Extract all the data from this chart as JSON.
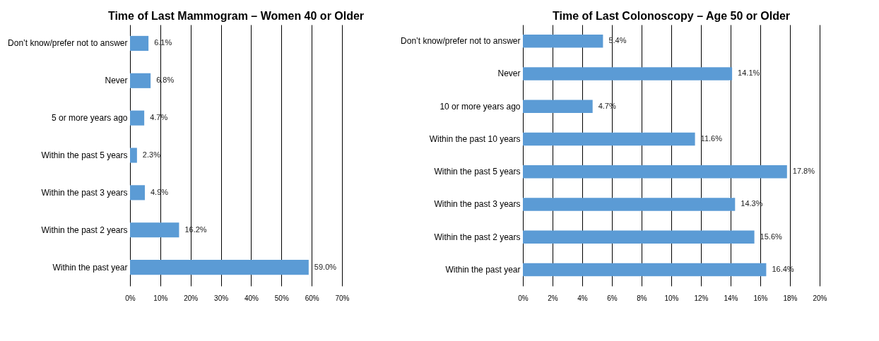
{
  "chart_data": [
    {
      "type": "bar",
      "orientation": "horizontal",
      "title": "Time of Last Mammogram – Women 40 or Older",
      "categories": [
        "Don’t know/prefer not to answer",
        "Never",
        "5 or more years ago",
        "Within the past 5 years",
        "Within the past 3 years",
        "Within the past 2 years",
        "Within the past year"
      ],
      "values": [
        6.1,
        6.8,
        4.7,
        2.3,
        4.9,
        16.2,
        59.0
      ],
      "value_labels": [
        "6.1%",
        "6.8%",
        "4.7%",
        "2.3%",
        "4.9%",
        "16.2%",
        "59.0%"
      ],
      "color": "#5b9bd5",
      "xlim": [
        0,
        70
      ],
      "xticks": [
        {
          "value": 0,
          "label": "0%"
        },
        {
          "value": 10,
          "label": "10%"
        },
        {
          "value": 20,
          "label": "20%"
        },
        {
          "value": 30,
          "label": "30%"
        },
        {
          "value": 40,
          "label": "40%"
        },
        {
          "value": 50,
          "label": "50%"
        },
        {
          "value": 60,
          "label": "60%"
        },
        {
          "value": 70,
          "label": "70%"
        }
      ],
      "grid": "x"
    },
    {
      "type": "bar",
      "orientation": "horizontal",
      "title": "Time of Last Colonoscopy – Age 50 or Older",
      "categories": [
        "Don’t know/prefer not to answer",
        "Never",
        "10 or more years ago",
        "Within the past 10 years",
        "Within the past 5 years",
        "Within the past 3 years",
        "Within the past 2 years",
        "Within the past year"
      ],
      "values": [
        5.4,
        14.1,
        4.7,
        11.6,
        17.8,
        14.3,
        15.6,
        16.4
      ],
      "value_labels": [
        "5.4%",
        "14.1%",
        "4.7%",
        "11.6%",
        "17.8%",
        "14.3%",
        "15.6%",
        "16.4%"
      ],
      "color": "#5b9bd5",
      "xlim": [
        0,
        20
      ],
      "xticks": [
        {
          "value": 0,
          "label": "0%"
        },
        {
          "value": 2,
          "label": "2%"
        },
        {
          "value": 4,
          "label": "4%"
        },
        {
          "value": 6,
          "label": "6%"
        },
        {
          "value": 8,
          "label": "8%"
        },
        {
          "value": 10,
          "label": "10%"
        },
        {
          "value": 12,
          "label": "12%"
        },
        {
          "value": 14,
          "label": "14%"
        },
        {
          "value": 16,
          "label": "16%"
        },
        {
          "value": 18,
          "label": "18%"
        },
        {
          "value": 20,
          "label": "20%"
        }
      ],
      "grid": "x"
    }
  ]
}
